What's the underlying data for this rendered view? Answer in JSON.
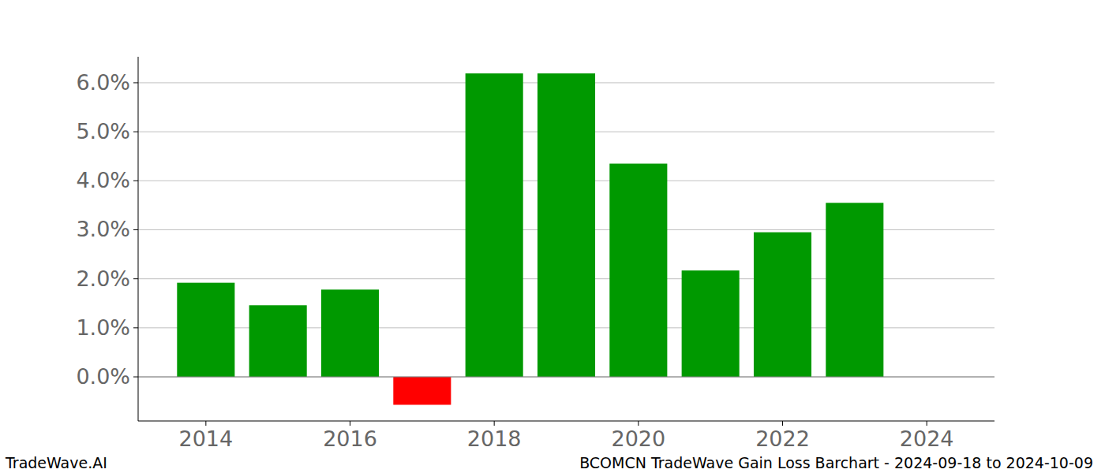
{
  "chart_data": {
    "type": "bar",
    "title": "BCOMCN TradeWave Gain Loss Barchart - 2024-09-18 to 2024-10-09",
    "annotations": [
      "TradeWave.AI"
    ],
    "x": [
      2014,
      2015,
      2016,
      2017,
      2018,
      2019,
      2020,
      2021,
      2022,
      2023
    ],
    "values": [
      1.92,
      1.46,
      1.78,
      -0.57,
      6.19,
      6.19,
      4.35,
      2.17,
      2.95,
      3.55
    ],
    "colors": [
      "#009900",
      "#009900",
      "#009900",
      "#ff0000",
      "#009900",
      "#009900",
      "#009900",
      "#009900",
      "#009900",
      "#009900"
    ],
    "xlim": [
      2013.06,
      2024.94
    ],
    "xticks": [
      2014,
      2016,
      2018,
      2020,
      2022,
      2024
    ],
    "ylim": [
      -0.9,
      6.53
    ],
    "yticks": [
      {
        "value": 0,
        "label": "0.0%"
      },
      {
        "value": 1,
        "label": "1.0%"
      },
      {
        "value": 2,
        "label": "2.0%"
      },
      {
        "value": 3,
        "label": "3.0%"
      },
      {
        "value": 4,
        "label": "4.0%"
      },
      {
        "value": 5,
        "label": "5.0%"
      },
      {
        "value": 6,
        "label": "6.0%"
      }
    ],
    "grid": true
  }
}
